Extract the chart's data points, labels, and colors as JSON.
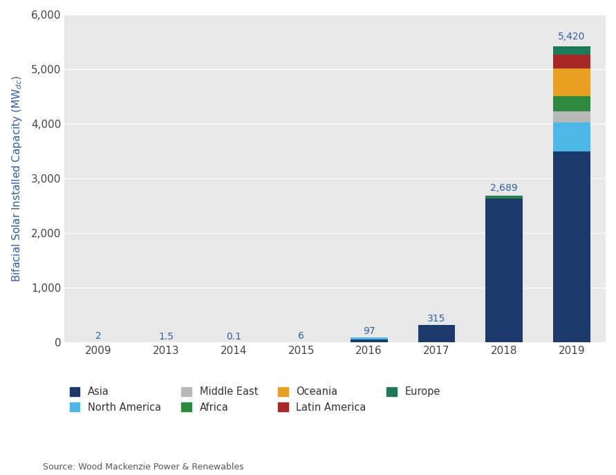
{
  "years": [
    "2009",
    "2013",
    "2014",
    "2015",
    "2016",
    "2017",
    "2018",
    "2019"
  ],
  "totals": [
    2,
    1.5,
    0.1,
    6,
    97,
    315,
    2689,
    5420
  ],
  "series": {
    "Asia": [
      1.8,
      1.2,
      0.07,
      5.5,
      55.0,
      315.0,
      2640.0,
      3500.0
    ],
    "North America": [
      0.15,
      0.15,
      0.01,
      0.3,
      35.0,
      0.0,
      0.0,
      530.0
    ],
    "Middle East": [
      0.0,
      0.0,
      0.0,
      0.0,
      0.0,
      0.0,
      0.0,
      200.0
    ],
    "Africa": [
      0.0,
      0.0,
      0.0,
      0.0,
      0.0,
      0.0,
      14.0,
      280.0
    ],
    "Oceania": [
      0.0,
      0.0,
      0.0,
      0.0,
      0.0,
      0.0,
      0.0,
      500.0
    ],
    "Latin America": [
      0.05,
      0.15,
      0.02,
      0.2,
      7.0,
      0.0,
      0.0,
      250.0
    ],
    "Europe": [
      0.0,
      0.0,
      0.0,
      0.0,
      0.0,
      0.0,
      35.0,
      160.0
    ]
  },
  "colors": {
    "Asia": "#1b3a6b",
    "North America": "#4db8e8",
    "Middle East": "#b8b8b8",
    "Africa": "#2d8a3e",
    "Oceania": "#e8a020",
    "Latin America": "#a82828",
    "Europe": "#1a7a5a"
  },
  "ylim": [
    0,
    6000
  ],
  "yticks": [
    0,
    1000,
    2000,
    3000,
    4000,
    5000,
    6000
  ],
  "plot_bg": "#e8e8e8",
  "fig_bg": "#ffffff",
  "source_text": "Source: Wood Mackenzie Power & Renewables",
  "label_color": "#2e5fa3",
  "tick_color": "#444444"
}
